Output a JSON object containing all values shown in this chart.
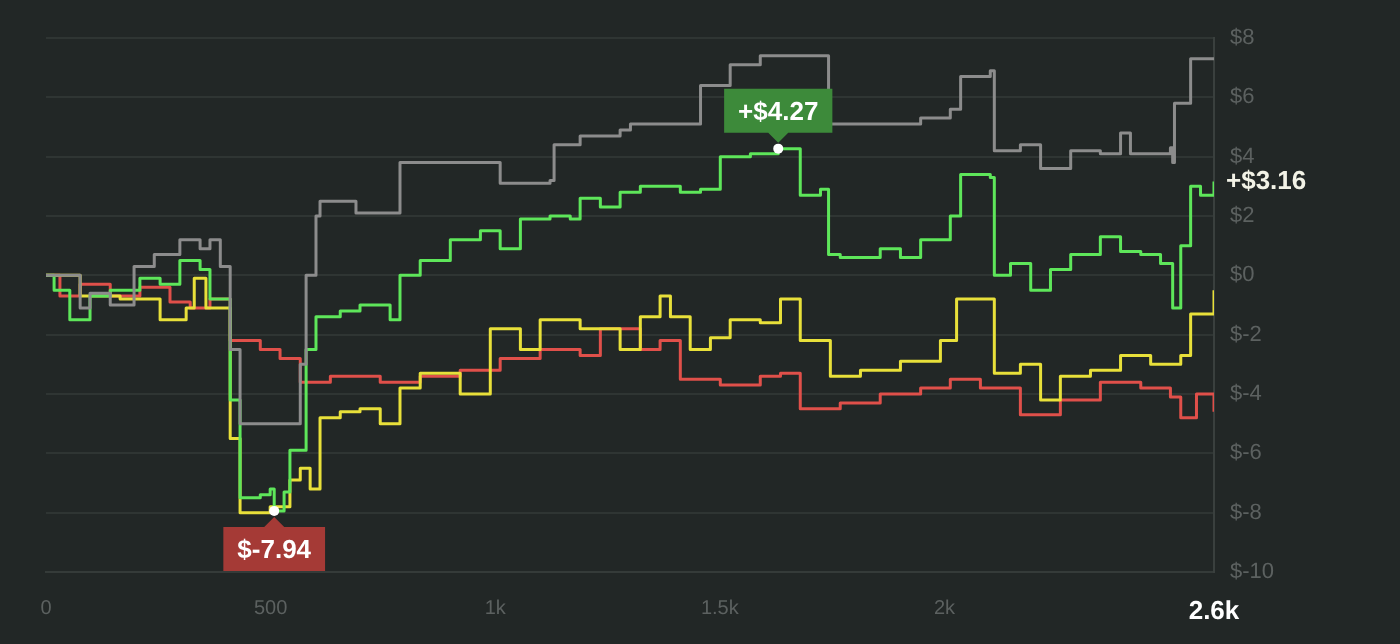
{
  "chart_data": {
    "type": "step",
    "xlim": [
      0,
      2600
    ],
    "ylim": [
      -10,
      8
    ],
    "xticks": [
      0,
      500,
      {
        "value": 1000,
        "label": "1k"
      },
      {
        "value": 1500,
        "label": "1.5k"
      },
      {
        "value": 2000,
        "label": "2k"
      },
      {
        "value": 2600,
        "label": "2.6k"
      }
    ],
    "yticks": [
      {
        "value": -10,
        "label": "$-10"
      },
      {
        "value": -8,
        "label": "$-8"
      },
      {
        "value": -6,
        "label": "$-6"
      },
      {
        "value": -4,
        "label": "$-4"
      },
      {
        "value": -2,
        "label": "$-2"
      },
      {
        "value": 0,
        "label": "$0"
      },
      {
        "value": 2,
        "label": "$2"
      },
      {
        "value": 4,
        "label": "$4"
      },
      {
        "value": 6,
        "label": "$6"
      },
      {
        "value": 8,
        "label": "$8"
      }
    ],
    "grid": "y",
    "legend": false,
    "marker": "none",
    "line_style": "solid",
    "annotations": [
      {
        "text": "+$4.27",
        "x": 1630,
        "y": 4.27
      },
      {
        "text": "$-7.94",
        "x": 508,
        "y": -7.94
      },
      {
        "text": "+$3.16",
        "x": 2600,
        "y": 3.16
      }
    ],
    "series": [
      {
        "color": "#8c8c8c",
        "x": [
          0,
          76,
          98,
          143,
          196,
          241,
          298,
          343,
          365,
          388,
          410,
          432,
          543,
          566,
          575,
          579,
          601,
          610,
          655,
          690,
          788,
          877,
          967,
          1011,
          1078,
          1122,
          1131,
          1189,
          1278,
          1301,
          1367,
          1457,
          1523,
          1590,
          1733,
          1742,
          1880,
          1947,
          2013,
          2036,
          2102,
          2111,
          2169,
          2214,
          2281,
          2347,
          2392,
          2414,
          2503,
          2508,
          2512,
          2548,
          2600
        ],
        "values": [
          0,
          -1.1,
          -0.6,
          -1.0,
          0.3,
          0.7,
          1.2,
          0.9,
          1.2,
          0.3,
          -2.5,
          -5.0,
          -5.0,
          -3.0,
          -3.0,
          0,
          2.0,
          2.5,
          2.5,
          2.1,
          3.8,
          3.8,
          3.8,
          3.1,
          3.1,
          3.2,
          4.4,
          4.7,
          4.9,
          5.1,
          5.1,
          6.4,
          7.1,
          7.4,
          7.4,
          5.1,
          5.1,
          5.3,
          5.6,
          6.7,
          6.9,
          4.2,
          4.4,
          3.6,
          4.2,
          4.1,
          4.8,
          4.1,
          4.3,
          3.8,
          5.8,
          7.3,
          7.3
        ]
      },
      {
        "color": "#5ee65a",
        "x": [
          0,
          18,
          53,
          98,
          143,
          209,
          254,
          298,
          343,
          365,
          410,
          432,
          477,
          499,
          508,
          530,
          543,
          579,
          601,
          655,
          699,
          766,
          788,
          833,
          900,
          967,
          1011,
          1056,
          1122,
          1167,
          1189,
          1234,
          1278,
          1323,
          1367,
          1412,
          1457,
          1501,
          1568,
          1630,
          1679,
          1724,
          1742,
          1768,
          1857,
          1902,
          1947,
          2013,
          2036,
          2102,
          2111,
          2147,
          2192,
          2236,
          2281,
          2347,
          2392,
          2437,
          2481,
          2508,
          2526,
          2548,
          2570,
          2600
        ],
        "values": [
          0,
          -0.5,
          -1.5,
          -0.7,
          -0.5,
          -0.1,
          -0.3,
          0.5,
          0.2,
          -0.8,
          -4.2,
          -7.5,
          -7.4,
          -7.2,
          -7.94,
          -7.3,
          -5.9,
          -2.5,
          -1.4,
          -1.2,
          -1.0,
          -1.5,
          0.0,
          0.5,
          1.2,
          1.5,
          0.9,
          1.9,
          2.0,
          1.9,
          2.6,
          2.3,
          2.8,
          3.0,
          3.0,
          2.8,
          2.9,
          4.0,
          4.1,
          4.27,
          2.7,
          2.9,
          0.7,
          0.6,
          0.9,
          0.6,
          1.2,
          2.0,
          3.4,
          3.3,
          0,
          0.4,
          -0.5,
          0.2,
          0.7,
          1.3,
          0.8,
          0.7,
          0.4,
          -1.1,
          1.0,
          3.0,
          2.7,
          3.16
        ]
      },
      {
        "color": "#e8e03a",
        "x": [
          0,
          76,
          165,
          254,
          312,
          330,
          356,
          410,
          432,
          499,
          543,
          566,
          588,
          610,
          655,
          699,
          744,
          788,
          833,
          922,
          989,
          1056,
          1100,
          1189,
          1278,
          1323,
          1367,
          1390,
          1434,
          1479,
          1523,
          1590,
          1635,
          1679,
          1746,
          1813,
          1902,
          1991,
          2027,
          2058,
          2111,
          2169,
          2214,
          2258,
          2325,
          2392,
          2459,
          2526,
          2548,
          2600
        ],
        "values": [
          0,
          -0.7,
          -0.8,
          -1.5,
          -1.1,
          -0.1,
          -1.1,
          -5.5,
          -8.0,
          -7.8,
          -6.9,
          -6.5,
          -7.2,
          -4.8,
          -4.6,
          -4.5,
          -5.0,
          -3.8,
          -3.3,
          -4.0,
          -1.8,
          -2.5,
          -1.5,
          -1.8,
          -2.5,
          -1.4,
          -0.7,
          -1.4,
          -2.5,
          -2.1,
          -1.5,
          -1.6,
          -0.8,
          -2.2,
          -3.4,
          -3.2,
          -2.9,
          -2.2,
          -0.8,
          -0.8,
          -3.3,
          -3.0,
          -4.2,
          -3.4,
          -3.2,
          -2.7,
          -3.0,
          -2.7,
          -1.3,
          -0.5
        ]
      },
      {
        "color": "#e0504a",
        "x": [
          0,
          31,
          76,
          143,
          209,
          276,
          321,
          365,
          410,
          477,
          521,
          566,
          633,
          744,
          833,
          922,
          1011,
          1100,
          1189,
          1234,
          1323,
          1367,
          1412,
          1501,
          1590,
          1635,
          1679,
          1768,
          1857,
          1947,
          2013,
          2080,
          2169,
          2258,
          2347,
          2437,
          2503,
          2526,
          2561,
          2600
        ],
        "values": [
          0,
          -0.7,
          -0.3,
          -0.7,
          -0.4,
          -0.9,
          -1.1,
          -0.8,
          -2.2,
          -2.5,
          -2.8,
          -3.6,
          -3.4,
          -3.6,
          -3.4,
          -3.2,
          -2.8,
          -2.5,
          -2.7,
          -1.8,
          -2.5,
          -2.2,
          -3.5,
          -3.7,
          -3.4,
          -3.3,
          -4.5,
          -4.3,
          -4.0,
          -3.8,
          -3.5,
          -3.8,
          -4.7,
          -4.2,
          -3.6,
          -3.8,
          -4.1,
          -4.8,
          -4.0,
          -4.6
        ]
      }
    ]
  }
}
